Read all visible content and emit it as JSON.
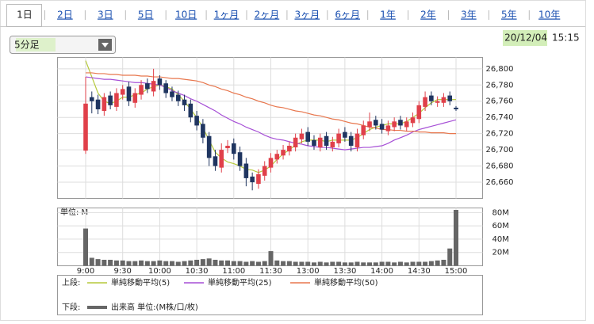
{
  "tabs": [
    "1日",
    "2日",
    "3日",
    "5日",
    "10日",
    "1ヶ月",
    "2ヶ月",
    "3ヶ月",
    "6ヶ月",
    "1年",
    "2年",
    "3年",
    "5年",
    "10年"
  ],
  "interval": "5分足",
  "timestamp": {
    "date": "20/12/04",
    "time": "15:15"
  },
  "chart_data": [
    {
      "type": "candlestick",
      "legend_title": "上段:",
      "up_color": "#e0404a",
      "down_color": "#1f3560",
      "ylim": [
        26640,
        26814
      ],
      "yticks": [
        {
          "value": 26660,
          "label": "26,660"
        },
        {
          "value": 26680,
          "label": "26,680"
        },
        {
          "value": 26700,
          "label": "26,700"
        },
        {
          "value": 26720,
          "label": "26,720"
        },
        {
          "value": 26740,
          "label": "26,740"
        },
        {
          "value": 26760,
          "label": "26,760"
        },
        {
          "value": 26780,
          "label": "26,780"
        },
        {
          "value": 26800,
          "label": "26,800"
        }
      ],
      "grid": true,
      "open": [
        26699,
        26765,
        26762,
        26748,
        26767,
        26753,
        26768,
        26778,
        26758,
        26768,
        26782,
        26772,
        26788,
        26782,
        26772,
        26768,
        26762,
        26757,
        26742,
        26732,
        26717,
        26692,
        26678,
        26702,
        26708,
        26697,
        26683,
        26667,
        26658,
        26668,
        26678,
        26688,
        26693,
        26698,
        26703,
        26713,
        26722,
        26712,
        26703,
        26717,
        26703,
        26708,
        26722,
        26717,
        26703,
        26718,
        26728,
        26737,
        26732,
        26723,
        26728,
        26737,
        26728,
        26733,
        26738,
        26753,
        26767,
        26758,
        26758,
        26767,
        26752
      ],
      "high": [
        26790,
        26772,
        26768,
        26770,
        26772,
        26776,
        26780,
        26784,
        26776,
        26786,
        26788,
        26800,
        26792,
        26786,
        26778,
        26773,
        26768,
        26762,
        26748,
        26738,
        26722,
        26700,
        26708,
        26712,
        26714,
        26704,
        26690,
        26672,
        26676,
        26686,
        26696,
        26700,
        26706,
        26710,
        26720,
        26726,
        26728,
        26718,
        26720,
        26722,
        26716,
        26726,
        26728,
        26722,
        26726,
        26736,
        26746,
        26742,
        26738,
        26736,
        26740,
        26742,
        26740,
        26746,
        26760,
        26772,
        26772,
        26766,
        26770,
        26772,
        26754
      ],
      "low": [
        26695,
        26745,
        26744,
        26742,
        26750,
        26748,
        26762,
        26754,
        26752,
        26762,
        26770,
        26766,
        26774,
        26764,
        26760,
        26754,
        26748,
        26734,
        26724,
        26708,
        26680,
        26674,
        26672,
        26696,
        26688,
        26674,
        26655,
        26650,
        26652,
        26662,
        26672,
        26683,
        26688,
        26693,
        26698,
        26708,
        26705,
        26700,
        26698,
        26700,
        26698,
        26703,
        26710,
        26698,
        26698,
        26713,
        26723,
        26725,
        26720,
        26718,
        26723,
        26725,
        26723,
        26728,
        26733,
        26748,
        26755,
        26753,
        26753,
        26755,
        26748
      ],
      "close": [
        26757,
        26760,
        26750,
        26765,
        26755,
        26770,
        26775,
        26760,
        26770,
        26780,
        26775,
        26785,
        26780,
        26770,
        26765,
        26760,
        26755,
        26740,
        26730,
        26715,
        26690,
        26680,
        26700,
        26705,
        26695,
        26680,
        26665,
        26660,
        26670,
        26680,
        26690,
        26695,
        26700,
        26705,
        26715,
        26720,
        26710,
        26705,
        26715,
        26705,
        26710,
        26720,
        26715,
        26705,
        26720,
        26730,
        26735,
        26730,
        26725,
        26730,
        26735,
        26730,
        26735,
        26740,
        26755,
        26765,
        26760,
        26760,
        26765,
        26760,
        26750
      ],
      "series": [
        {
          "name": "単純移動平均(5)",
          "color": "#b5c93a",
          "values": [
            26810,
            26790,
            26770,
            26760,
            26757,
            26760,
            26765,
            26765,
            26768,
            26770,
            26775,
            26778,
            26780,
            26778,
            26775,
            26768,
            26760,
            26750,
            26740,
            26727,
            26712,
            26697,
            26690,
            26685,
            26683,
            26680,
            26676,
            26675,
            26672,
            26675,
            26680,
            26688,
            26695,
            26700,
            26706,
            26710,
            26712,
            26712,
            26712,
            26710,
            26712,
            26712,
            26712,
            26712,
            26715,
            26720,
            26725,
            26728,
            26730,
            26732,
            26732,
            26732,
            26735,
            26740,
            26745,
            26752,
            26758,
            26762,
            26762,
            26762,
            26762
          ]
        },
        {
          "name": "単純移動平均(25)",
          "color": "#a64fd6",
          "values": [
            26790,
            26789,
            26788,
            26787,
            26787,
            26786,
            26785,
            26784,
            26783,
            26783,
            26782,
            26781,
            26780,
            26777,
            26773,
            26770,
            26767,
            26763,
            26760,
            26756,
            26752,
            26748,
            26743,
            26739,
            26735,
            26732,
            26728,
            26725,
            26722,
            26718,
            26715,
            26713,
            26712,
            26710,
            26708,
            26707,
            26705,
            26704,
            26703,
            26703,
            26702,
            26701,
            26700,
            26701,
            26702,
            26703,
            26703,
            26704,
            26705,
            26708,
            26712,
            26715,
            26718,
            26722,
            26725,
            26727,
            26729,
            26731,
            26733,
            26735,
            26737
          ]
        },
        {
          "name": "単純移動平均(50)",
          "color": "#e8774e",
          "values": [
            26795,
            26795,
            26794,
            26794,
            26793,
            26793,
            26792,
            26792,
            26792,
            26791,
            26791,
            26790,
            26790,
            26789,
            26788,
            26788,
            26787,
            26786,
            26785,
            26783,
            26780,
            26778,
            26775,
            26773,
            26770,
            26768,
            26765,
            26763,
            26760,
            26758,
            26755,
            26753,
            26752,
            26750,
            26748,
            26747,
            26745,
            26743,
            26742,
            26740,
            26738,
            26737,
            26735,
            26733,
            26732,
            26730,
            26728,
            26727,
            26725,
            26725,
            26724,
            26724,
            26723,
            26723,
            26722,
            26722,
            26721,
            26721,
            26721,
            26720,
            26720
          ]
        }
      ]
    },
    {
      "type": "bar",
      "legend_title": "下段:",
      "y_unit_label": "単位: M",
      "categories": [
        "9:00",
        null,
        null,
        null,
        null,
        null,
        "9:30",
        null,
        null,
        null,
        null,
        null,
        "10:00",
        null,
        null,
        null,
        null,
        null,
        "10:30",
        null,
        null,
        null,
        null,
        null,
        "11:00",
        null,
        null,
        null,
        null,
        null,
        "11:30",
        null,
        null,
        null,
        null,
        null,
        "13:00",
        null,
        null,
        null,
        null,
        null,
        "13:30",
        null,
        null,
        null,
        null,
        null,
        "14:00",
        null,
        null,
        null,
        null,
        null,
        "14:30",
        null,
        null,
        null,
        null,
        null,
        "15:00"
      ],
      "ylim": [
        0,
        87
      ],
      "yticks": [
        {
          "value": 20,
          "label": "20M"
        },
        {
          "value": 40,
          "label": "40M"
        },
        {
          "value": 60,
          "label": "60M"
        },
        {
          "value": 80,
          "label": "80M"
        }
      ],
      "grid": true,
      "series": [
        {
          "name": "出来高 単位:(M株/口/枚)",
          "color": "#666666",
          "values": [
            56,
            12,
            10,
            9,
            9,
            8,
            8,
            7,
            7,
            8,
            7,
            7,
            8,
            7,
            7,
            6,
            7,
            8,
            9,
            10,
            11,
            9,
            8,
            8,
            7,
            7,
            6,
            7,
            6,
            7,
            22,
            8,
            7,
            7,
            6,
            6,
            6,
            5,
            6,
            5,
            6,
            6,
            5,
            5,
            6,
            5,
            5,
            5,
            6,
            6,
            5,
            6,
            5,
            6,
            6,
            6,
            7,
            8,
            9,
            26,
            84
          ]
        }
      ]
    }
  ]
}
